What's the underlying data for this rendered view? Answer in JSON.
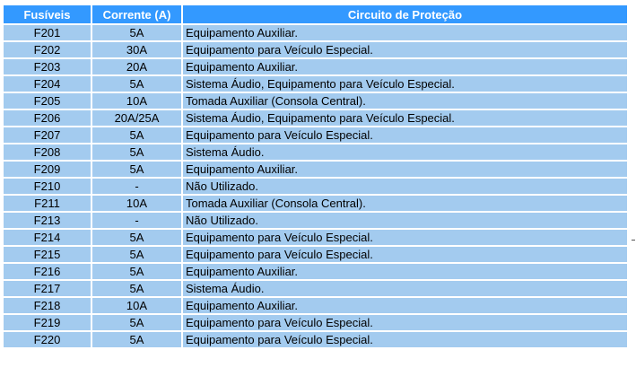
{
  "colors": {
    "header": "#3399ff",
    "row": "#a3cbef"
  },
  "headers": [
    "Fusíveis",
    "Corrente (A)",
    "Circuito de Proteção"
  ],
  "rows": [
    [
      "F201",
      "5A",
      "Equipamento Auxiliar."
    ],
    [
      "F202",
      "30A",
      "Equipamento para Veículo Especial."
    ],
    [
      "F203",
      "20A",
      "Equipamento Auxiliar."
    ],
    [
      "F204",
      "5A",
      "Sistema Áudio, Equipamento para Veículo Especial."
    ],
    [
      "F205",
      "10A",
      "Tomada Auxiliar (Consola Central)."
    ],
    [
      "F206",
      "20A/25A",
      "Sistema Áudio, Equipamento para Veículo Especial."
    ],
    [
      "F207",
      "5A",
      "Equipamento para Veículo Especial."
    ],
    [
      "F208",
      "5A",
      "Sistema Áudio."
    ],
    [
      "F209",
      "5A",
      "Equipamento Auxiliar."
    ],
    [
      "F210",
      "-",
      "Não Utilizado."
    ],
    [
      "F211",
      "10A",
      "Tomada Auxiliar (Consola Central)."
    ],
    [
      "F213",
      "-",
      "Não Utilizado."
    ],
    [
      "F214",
      "5A",
      "Equipamento para Veículo Especial."
    ],
    [
      "F215",
      "5A",
      "Equipamento para Veículo Especial."
    ],
    [
      "F216",
      "5A",
      "Equipamento Auxiliar."
    ],
    [
      "F217",
      "5A",
      "Sistema Áudio."
    ],
    [
      "F218",
      "10A",
      "Equipamento Auxiliar."
    ],
    [
      "F219",
      "5A",
      "Equipamento para Veículo Especial."
    ],
    [
      "F220",
      "5A",
      "Equipamento para Veículo Especial."
    ]
  ]
}
